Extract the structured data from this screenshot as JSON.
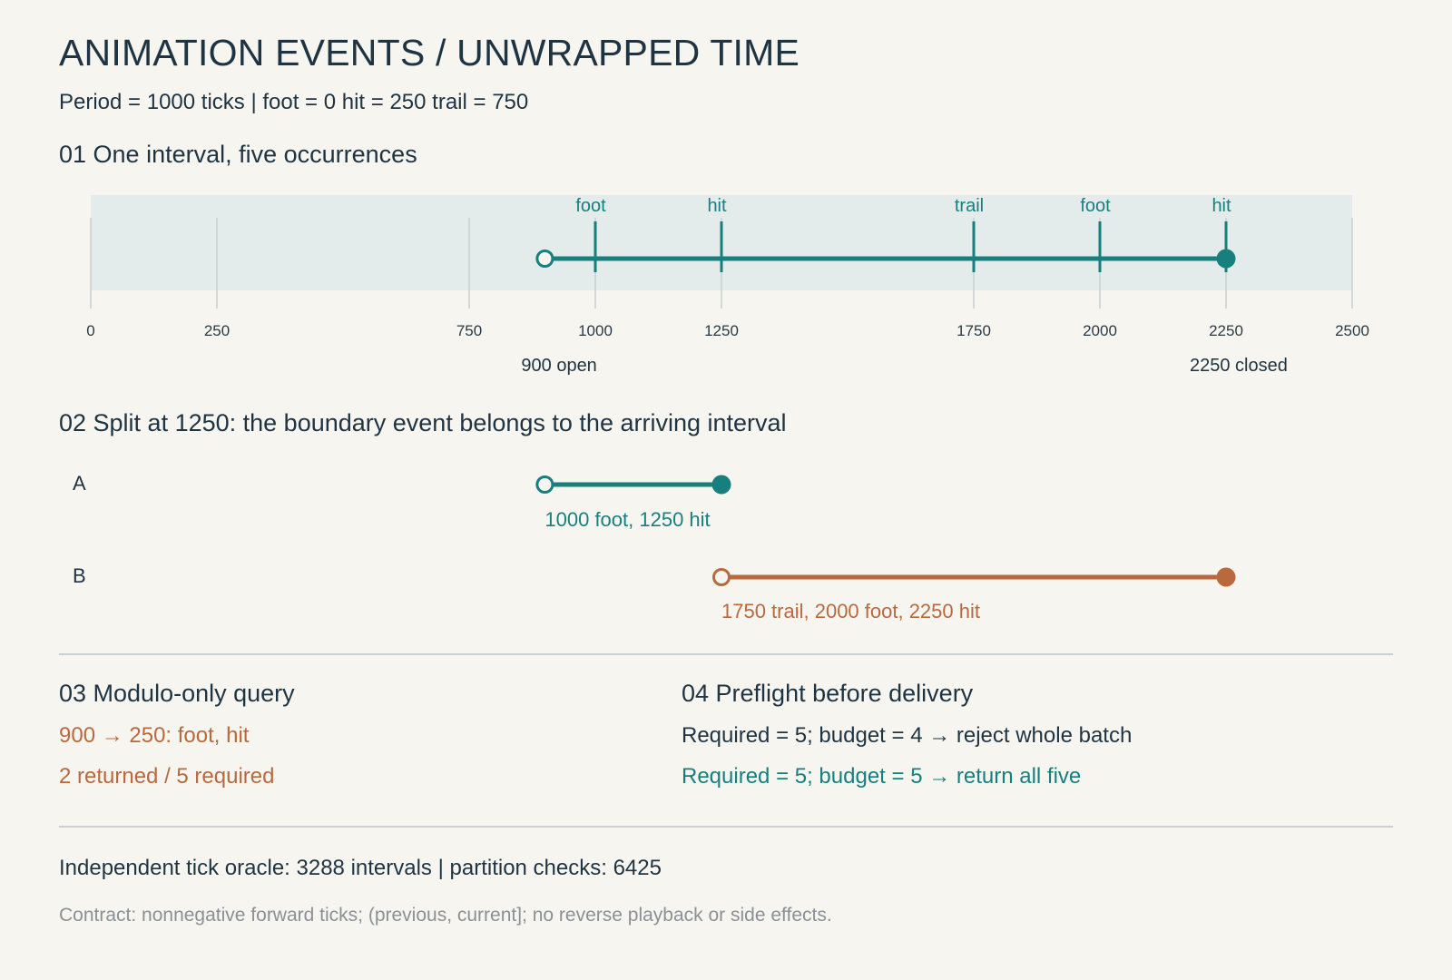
{
  "header": {
    "title": "ANIMATION EVENTS / UNWRAPPED TIME",
    "subtitle": "Period = 1000 ticks | foot = 0 hit = 250 trail = 750"
  },
  "section1": {
    "heading": "01 One interval, five occurrences",
    "ticks": [
      "0",
      "250",
      "750",
      "1000",
      "1250",
      "1750",
      "2000",
      "2250",
      "2500"
    ],
    "events": [
      {
        "label": "foot",
        "t": 1000
      },
      {
        "label": "hit",
        "t": 1250
      },
      {
        "label": "trail",
        "t": 1750
      },
      {
        "label": "foot",
        "t": 2000
      },
      {
        "label": "hit",
        "t": 2250
      }
    ],
    "interval": {
      "start": 900,
      "end": 2250
    },
    "start_note": "900 open",
    "end_note": "2250 closed"
  },
  "section2": {
    "heading": "02 Split at 1250: the boundary event belongs to the arriving interval",
    "rows": [
      {
        "name": "A",
        "start": 900,
        "end": 1250,
        "note": "1000 foot, 1250 hit",
        "color": "#17807f"
      },
      {
        "name": "B",
        "start": 1250,
        "end": 2250,
        "note": "1750 trail, 2000 foot, 2250 hit",
        "color": "#b86a3e"
      }
    ]
  },
  "section3": {
    "heading": "03 Modulo-only query",
    "line1": "900 → 250: foot, hit",
    "line2": "2 returned / 5 required"
  },
  "section4": {
    "heading": "04 Preflight before delivery",
    "line1": "Required = 5; budget = 4 → reject whole batch",
    "line2": "Required = 5; budget = 5 → return all five"
  },
  "footer": {
    "oracle": "Independent tick oracle: 3288 intervals | partition checks: 6425",
    "contract": "Contract: nonnegative forward ticks; (previous, current]; no reverse playback or side effects."
  },
  "colors": {
    "teal": "#17807f",
    "orange": "#b86a3e",
    "ink": "#1f3442",
    "band": "#e3ecea",
    "grid": "#c9cfd1",
    "background": "#f7f5ef"
  }
}
